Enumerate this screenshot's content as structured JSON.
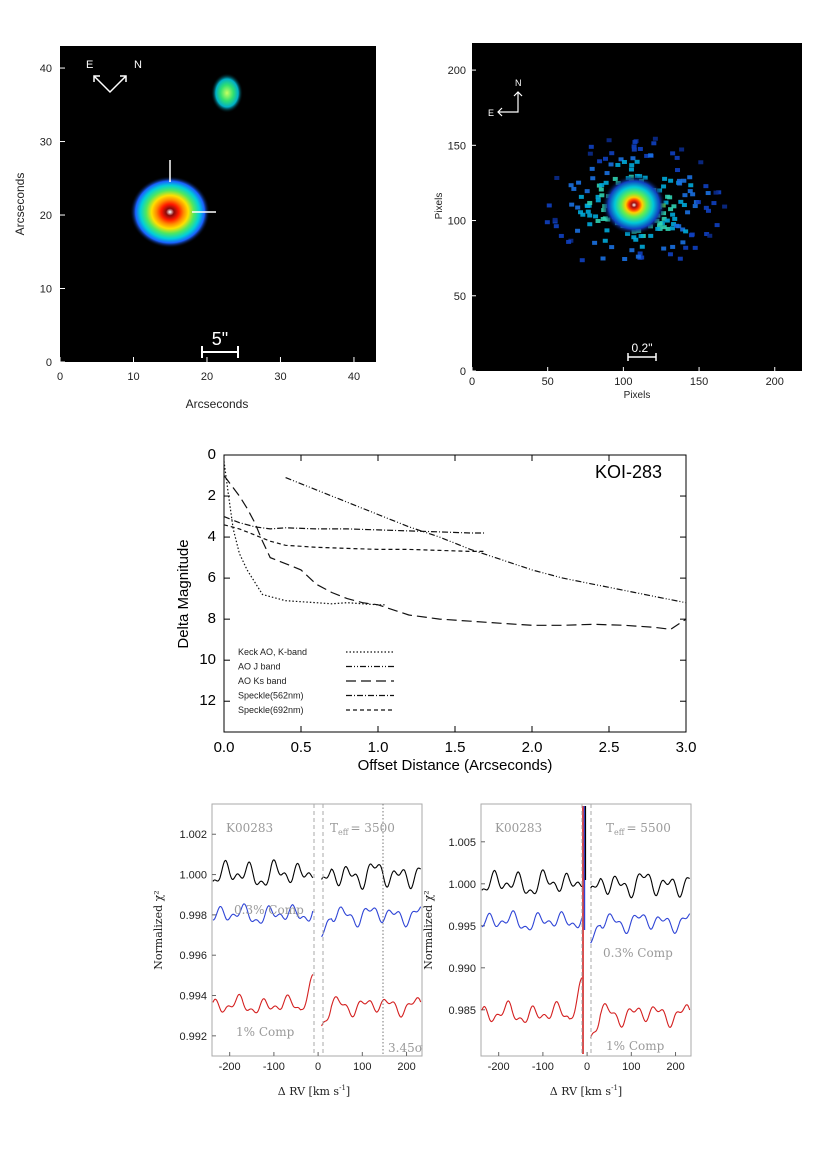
{
  "chart_data": [
    {
      "type": "image",
      "title": "",
      "xlabel": "Arcseconds",
      "ylabel": "Arcseconds",
      "xlim": [
        0,
        43
      ],
      "ylim": [
        0,
        43
      ],
      "xticks": [
        "0",
        "10",
        "20",
        "30",
        "40"
      ],
      "yticks": [
        "0",
        "10",
        "20",
        "30",
        "40"
      ],
      "compass": {
        "east": "E",
        "north": "N"
      },
      "scale_bar": "5\"",
      "sources": [
        {
          "name": "primary",
          "x": 15.5,
          "y": 20.5
        },
        {
          "name": "companion",
          "x": 23,
          "y": 37
        }
      ]
    },
    {
      "type": "image",
      "xlabel": "Pixels",
      "ylabel": "Pixels",
      "xlim": [
        0,
        218
      ],
      "ylim": [
        0,
        218
      ],
      "xticks": [
        "0",
        "50",
        "100",
        "150",
        "200"
      ],
      "yticks": [
        "0",
        "50",
        "100",
        "150",
        "200"
      ],
      "compass": {
        "east": "E",
        "north": "N"
      },
      "scale_bar": "0.2\"",
      "sources": [
        {
          "name": "target",
          "x": 110,
          "y": 111
        }
      ]
    },
    {
      "type": "line",
      "title": "KOI-283",
      "xlabel": "Offset Distance (Arcseconds)",
      "ylabel": "Delta Magnitude",
      "xlim": [
        0,
        3
      ],
      "ylim": [
        0,
        13.5
      ],
      "y_inverted": true,
      "xticks": [
        "0.0",
        "0.5",
        "1.0",
        "1.5",
        "2.0",
        "2.5",
        "3.0"
      ],
      "yticks": [
        "0",
        "2",
        "4",
        "6",
        "8",
        "10",
        "12"
      ],
      "series": [
        {
          "name": "Keck AO, K-band",
          "style": "dotted",
          "x": [
            0.0,
            0.03,
            0.06,
            0.1,
            0.15,
            0.2,
            0.25,
            0.3,
            0.4,
            0.5,
            0.6,
            0.7,
            0.8,
            0.9,
            1.0,
            1.05
          ],
          "y": [
            0.3,
            2.0,
            3.6,
            4.8,
            5.6,
            6.2,
            6.8,
            6.9,
            7.1,
            7.15,
            7.2,
            7.25,
            7.2,
            7.25,
            7.3,
            7.3
          ]
        },
        {
          "name": "AO J band",
          "style": "dash-dot-dot",
          "x": [
            0.4,
            0.6,
            0.8,
            1.0,
            1.2,
            1.4,
            1.6,
            1.8,
            2.0,
            2.2,
            2.4,
            2.6,
            2.8,
            3.0
          ],
          "y": [
            1.1,
            1.7,
            2.3,
            2.9,
            3.5,
            4.0,
            4.6,
            5.1,
            5.6,
            6.0,
            6.3,
            6.6,
            6.9,
            7.2
          ]
        },
        {
          "name": "AO Ks band",
          "style": "long-dash",
          "x": [
            0.0,
            0.05,
            0.1,
            0.15,
            0.2,
            0.25,
            0.3,
            0.4,
            0.5,
            0.6,
            0.7,
            0.8,
            0.9,
            1.0,
            1.2,
            1.4,
            1.6,
            1.8,
            2.0,
            2.2,
            2.4,
            2.6,
            2.8,
            2.9,
            3.0
          ],
          "y": [
            1.0,
            1.5,
            2.0,
            2.6,
            3.3,
            4.2,
            5.0,
            5.3,
            5.6,
            6.3,
            6.7,
            7.0,
            7.2,
            7.3,
            7.8,
            8.0,
            8.1,
            8.2,
            8.3,
            8.3,
            8.25,
            8.3,
            8.4,
            8.5,
            8.0
          ]
        },
        {
          "name": "Speckle(562nm)",
          "style": "dash-dot",
          "x": [
            0.0,
            0.1,
            0.2,
            0.3,
            0.4,
            0.6,
            0.8,
            1.0,
            1.2,
            1.4,
            1.6,
            1.7
          ],
          "y": [
            3.0,
            3.3,
            3.5,
            3.6,
            3.55,
            3.6,
            3.6,
            3.65,
            3.7,
            3.75,
            3.8,
            3.8
          ]
        },
        {
          "name": "Speckle(692nm)",
          "style": "dashed",
          "x": [
            0.0,
            0.1,
            0.2,
            0.3,
            0.4,
            0.6,
            0.8,
            1.0,
            1.2,
            1.4,
            1.6,
            1.7
          ],
          "y": [
            3.4,
            3.6,
            3.9,
            4.2,
            4.4,
            4.5,
            4.55,
            4.6,
            4.6,
            4.65,
            4.7,
            4.7
          ]
        }
      ]
    },
    {
      "type": "line",
      "ylabel": "Normalized χ²",
      "xlabel_prefix": "Δ RV [km s",
      "xlabel_sup": "-1",
      "xlabel_suffix": "]",
      "xlim": [
        -240,
        235
      ],
      "ylim": [
        0.991,
        1.0035
      ],
      "xticks": [
        "-200",
        "-100",
        "0",
        "100",
        "200"
      ],
      "yticks": [
        "0.992",
        "0.994",
        "0.996",
        "0.998",
        "1.000",
        "1.002"
      ],
      "annotations": {
        "koi": "K00283",
        "teff_label": "T",
        "teff_sub": "eff",
        "teff_value": "= 3500",
        "sigma": "3.45σ"
      },
      "series": [
        {
          "name": "primary",
          "color": "#000000",
          "base": 1.0
        },
        {
          "name": "0.3% Comp",
          "color": "#2f45d6",
          "base": 0.998
        },
        {
          "name": "1% Comp",
          "color": "#d42020",
          "base": 0.9935
        }
      ]
    },
    {
      "type": "line",
      "ylabel": "Normalized χ²",
      "xlabel_prefix": "Δ RV [km s",
      "xlabel_sup": "-1",
      "xlabel_suffix": "]",
      "xlim": [
        -240,
        235
      ],
      "ylim": [
        0.9795,
        1.0095
      ],
      "xticks": [
        "-200",
        "-100",
        "0",
        "100",
        "200"
      ],
      "yticks": [
        "0.985",
        "0.990",
        "0.995",
        "1.000",
        "1.005"
      ],
      "annotations": {
        "koi": "K00283",
        "teff_label": "T",
        "teff_sub": "eff",
        "teff_value": "= 5500"
      },
      "series": [
        {
          "name": "primary",
          "color": "#000000",
          "base": 1.0
        },
        {
          "name": "0.3% Comp",
          "color": "#2f45d6",
          "base": 0.9955
        },
        {
          "name": "1% Comp",
          "color": "#d42020",
          "base": 0.9845
        }
      ]
    }
  ]
}
